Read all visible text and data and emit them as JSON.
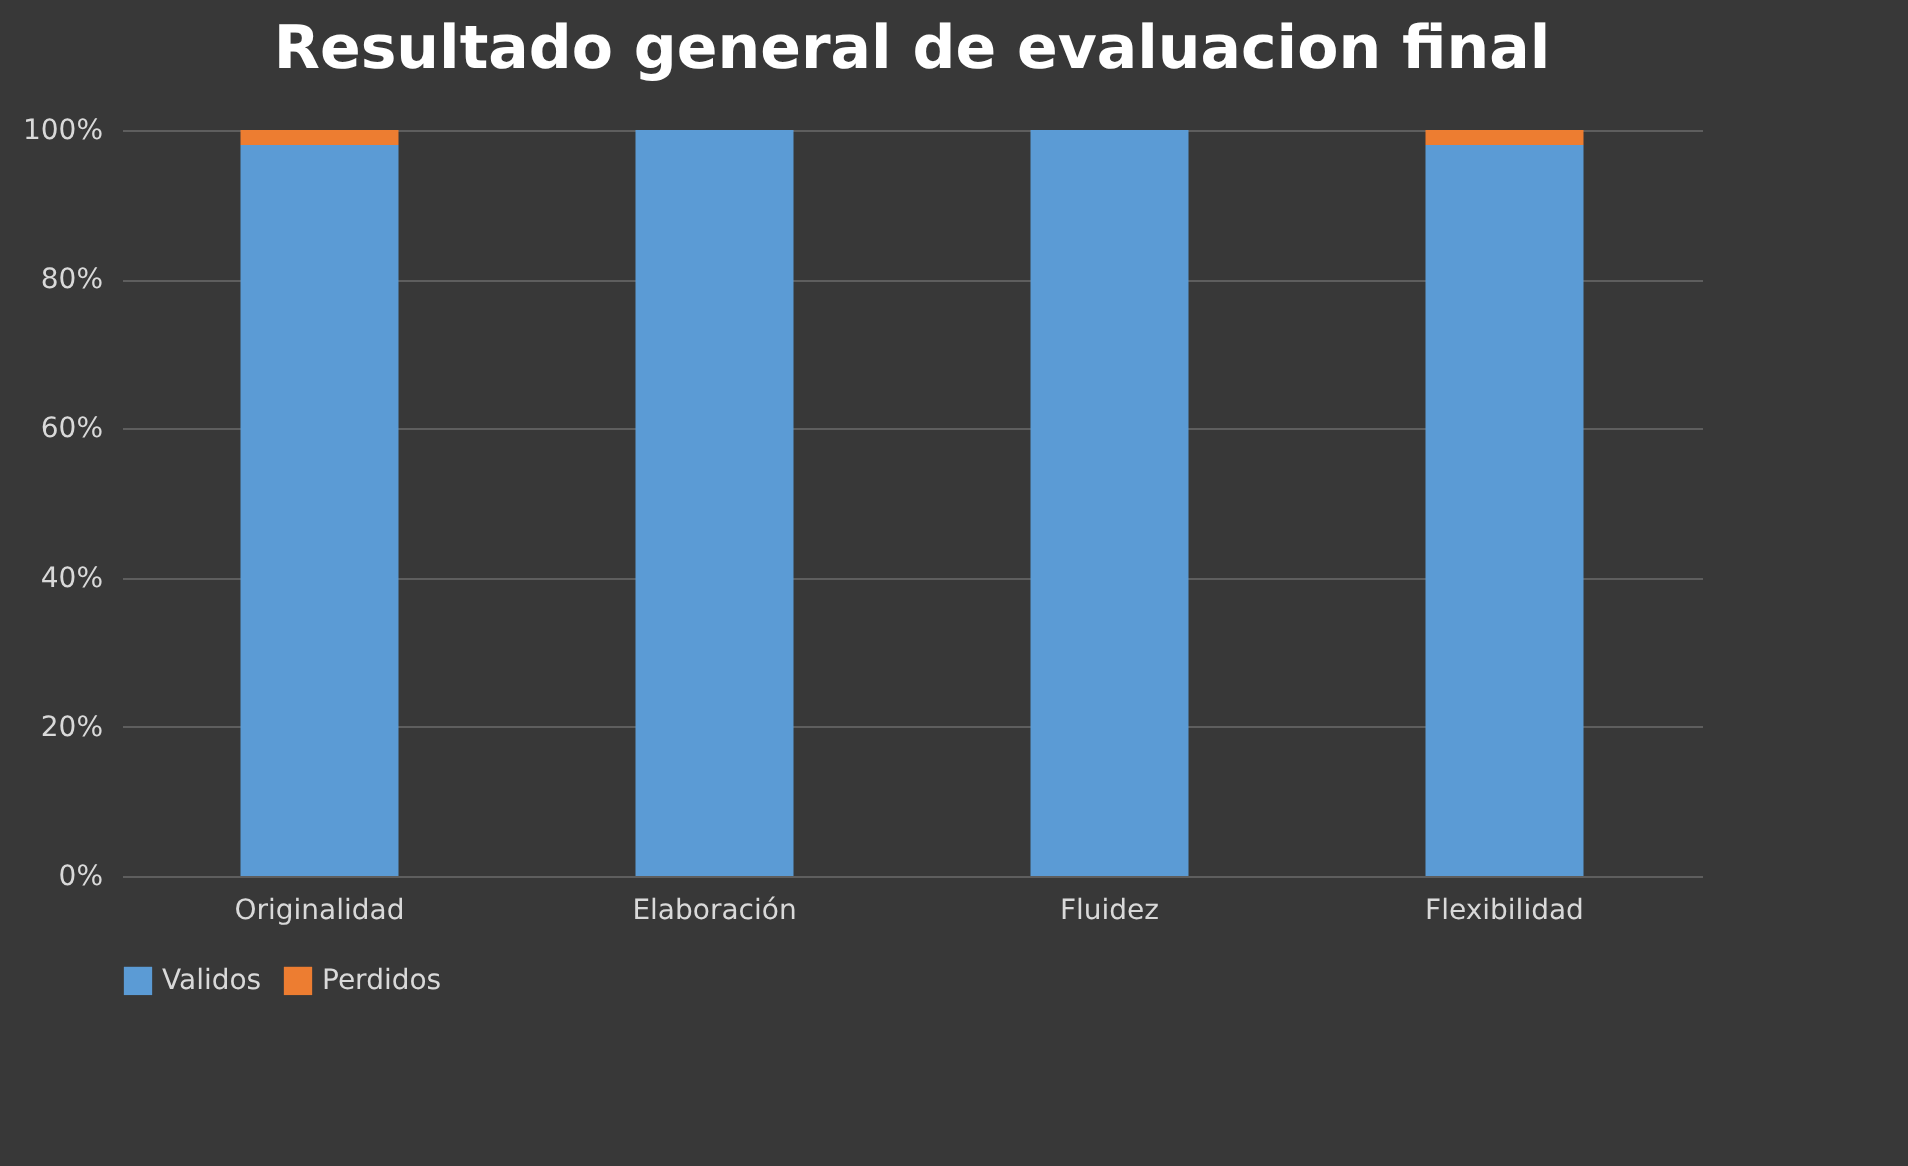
{
  "chart_data": {
    "type": "bar",
    "title": "Resultado general de evaluacion final",
    "categories": [
      "Originalidad",
      "Elaboración",
      "Fluidez",
      "Flexibilidad"
    ],
    "stacked": true,
    "series": [
      {
        "name": "Validos",
        "color": "#5b9bd5",
        "values": [
          98,
          100,
          100,
          98
        ]
      },
      {
        "name": "Perdidos",
        "color": "#ed7d31",
        "values": [
          2,
          0,
          0,
          2
        ]
      }
    ],
    "ylim": [
      0,
      100
    ],
    "yticks": [
      {
        "value": 0,
        "label": "0%"
      },
      {
        "value": 20,
        "label": "20%"
      },
      {
        "value": 40,
        "label": "40%"
      },
      {
        "value": 60,
        "label": "60%"
      },
      {
        "value": 80,
        "label": "80%"
      },
      {
        "value": 100,
        "label": "100%"
      }
    ],
    "grid": "y",
    "legend": "bottom"
  }
}
